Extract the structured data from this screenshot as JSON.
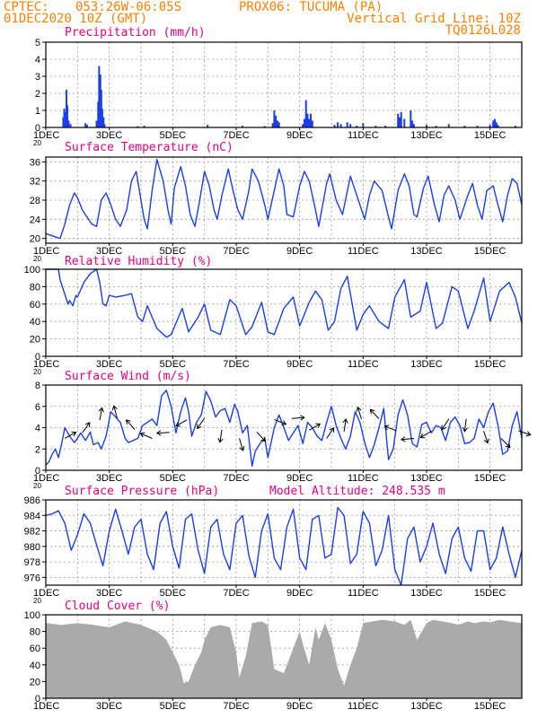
{
  "header": {
    "source": "CPTEC:",
    "coords": "053:26W-06:05S",
    "location": "PROX06: TUCUMA (PA)",
    "date": "01DEC2020 10Z (GMT)",
    "grid_note": "Vertical Grid Line: 10Z",
    "model": "TQ0126L028"
  },
  "colors": {
    "header": "#ff7f00",
    "panel_title": "#e6007e",
    "series": "#1c3ee6",
    "cloud": "#aaaaaa",
    "grid": "#9a9a9a"
  },
  "x_axis": {
    "labels": [
      "1DEC",
      "3DEC",
      "5DEC",
      "7DEC",
      "9DEC",
      "11DEC",
      "13DEC",
      "15DEC"
    ],
    "year_fragment": "20",
    "range_days": [
      0,
      15
    ]
  },
  "chart_data": [
    {
      "type": "bar",
      "title": "Precipitation (mm/h)",
      "ylim": [
        0,
        5
      ],
      "yticks": [
        0,
        1,
        2,
        3,
        4,
        5
      ],
      "unit_x": "days since 01DEC2020 10Z",
      "bars": [
        [
          0.55,
          0.6
        ],
        [
          0.58,
          1.1
        ],
        [
          0.62,
          0.9
        ],
        [
          0.65,
          2.2
        ],
        [
          0.68,
          1.3
        ],
        [
          0.72,
          0.4
        ],
        [
          0.78,
          0.2
        ],
        [
          1.25,
          0.25
        ],
        [
          1.3,
          0.15
        ],
        [
          1.6,
          0.4
        ],
        [
          1.65,
          1.5
        ],
        [
          1.68,
          3.6
        ],
        [
          1.72,
          3.1
        ],
        [
          1.75,
          2.2
        ],
        [
          1.78,
          1.1
        ],
        [
          1.82,
          0.6
        ],
        [
          1.85,
          0.2
        ],
        [
          2.9,
          0.08
        ],
        [
          3.1,
          0.1
        ],
        [
          5.1,
          0.15
        ],
        [
          6.2,
          0.1
        ],
        [
          6.9,
          0.08
        ],
        [
          7.15,
          0.25
        ],
        [
          7.2,
          1.0
        ],
        [
          7.25,
          0.7
        ],
        [
          7.3,
          0.4
        ],
        [
          7.35,
          0.3
        ],
        [
          8.1,
          0.2
        ],
        [
          8.15,
          0.5
        ],
        [
          8.2,
          1.6
        ],
        [
          8.25,
          0.8
        ],
        [
          8.3,
          0.5
        ],
        [
          8.35,
          0.8
        ],
        [
          8.4,
          0.4
        ],
        [
          9.1,
          0.15
        ],
        [
          9.2,
          0.3
        ],
        [
          9.3,
          0.2
        ],
        [
          9.5,
          0.3
        ],
        [
          9.6,
          0.2
        ],
        [
          9.8,
          0.1
        ],
        [
          10.0,
          0.25
        ],
        [
          10.4,
          0.1
        ],
        [
          10.7,
          0.1
        ],
        [
          11.1,
          0.8
        ],
        [
          11.15,
          0.6
        ],
        [
          11.2,
          0.9
        ],
        [
          11.3,
          0.5
        ],
        [
          11.5,
          1.0
        ],
        [
          11.55,
          0.4
        ],
        [
          11.6,
          0.2
        ],
        [
          12.0,
          0.15
        ],
        [
          12.3,
          0.1
        ],
        [
          12.7,
          0.2
        ],
        [
          13.2,
          0.1
        ],
        [
          13.6,
          0.1
        ],
        [
          14.0,
          0.15
        ],
        [
          14.1,
          0.4
        ],
        [
          14.15,
          0.5
        ],
        [
          14.2,
          0.3
        ],
        [
          14.25,
          0.15
        ],
        [
          14.8,
          0.1
        ]
      ]
    },
    {
      "type": "line",
      "title": "Surface Temperature (nC)",
      "ylim": [
        19,
        37
      ],
      "yticks": [
        20,
        24,
        28,
        32,
        36
      ],
      "x": [
        0,
        0.45,
        0.6,
        0.75,
        0.9,
        1.0,
        1.15,
        1.3,
        1.45,
        1.6,
        1.75,
        1.9,
        2.05,
        2.2,
        2.35,
        2.55,
        2.7,
        2.85,
        3.0,
        3.1,
        3.2,
        3.35,
        3.5,
        3.7,
        3.85,
        3.95,
        4.05,
        4.25,
        4.4,
        4.55,
        4.7,
        4.85,
        5.0,
        5.15,
        5.3,
        5.4,
        5.55,
        5.75,
        5.9,
        6.05,
        6.2,
        6.4,
        6.5,
        6.7,
        6.9,
        7.0,
        7.2,
        7.35,
        7.5,
        7.6,
        7.8,
        8.0,
        8.15,
        8.3,
        8.5,
        8.6,
        8.85,
        8.95,
        9.15,
        9.35,
        9.6,
        9.9,
        10.05,
        10.2,
        10.35,
        10.6,
        10.8,
        10.9,
        11.1,
        11.3,
        11.45,
        11.6,
        11.7,
        11.9,
        12.05,
        12.25,
        12.4,
        12.55,
        12.7,
        12.9,
        13.05,
        13.3,
        13.45,
        13.6,
        13.75,
        13.9,
        14.1,
        14.25,
        14.4,
        14.55,
        14.7,
        14.85,
        15.0
      ],
      "values": [
        21.0,
        20.0,
        23.0,
        27.0,
        29.5,
        28.5,
        26.0,
        24.5,
        23.0,
        22.5,
        28.0,
        29.5,
        27.0,
        24.0,
        22.5,
        26.0,
        32.0,
        34.0,
        28.0,
        24.0,
        22.0,
        30.0,
        36.5,
        32.0,
        26.0,
        23.0,
        30.5,
        35.0,
        31.0,
        25.0,
        22.5,
        28.0,
        34.0,
        31.0,
        26.0,
        24.0,
        29.0,
        34.5,
        30.0,
        26.0,
        24.0,
        30.0,
        34.5,
        32.0,
        27.0,
        24.0,
        30.0,
        34.5,
        31.0,
        25.0,
        24.5,
        31.0,
        34.0,
        32.0,
        26.0,
        22.5,
        31.5,
        33.5,
        28.0,
        25.0,
        33.0,
        27.0,
        24.0,
        29.0,
        32.0,
        30.0,
        24.5,
        22.0,
        30.0,
        33.5,
        31.0,
        25.0,
        24.5,
        30.5,
        33.0,
        27.0,
        23.5,
        29.0,
        31.0,
        28.0,
        24.0,
        29.0,
        31.5,
        27.0,
        24.0,
        30.0,
        31.0,
        27.0,
        23.5,
        29.0,
        32.5,
        31.5,
        27.0
      ]
    },
    {
      "type": "line",
      "title": "Relative Humidity (%)",
      "ylim": [
        0,
        100
      ],
      "yticks": [
        0,
        20,
        40,
        60,
        80,
        100
      ],
      "x": [
        0,
        0.4,
        0.45,
        0.7,
        0.75,
        0.85,
        0.95,
        1.0,
        1.2,
        1.4,
        1.6,
        1.7,
        1.8,
        1.9,
        2.0,
        2.2,
        2.5,
        2.7,
        2.9,
        3.05,
        3.2,
        3.5,
        3.8,
        3.95,
        4.1,
        4.3,
        4.5,
        4.8,
        5.0,
        5.2,
        5.5,
        5.8,
        6.0,
        6.3,
        6.5,
        6.8,
        7.0,
        7.2,
        7.5,
        7.8,
        8.0,
        8.3,
        8.5,
        8.7,
        8.9,
        9.1,
        9.3,
        9.5,
        9.8,
        10.0,
        10.2,
        10.5,
        10.8,
        11.0,
        11.3,
        11.5,
        11.8,
        12.0,
        12.3,
        12.5,
        12.8,
        13.0,
        13.3,
        13.5,
        13.8,
        14.0,
        14.3,
        14.6,
        14.8,
        15.0
      ],
      "values": [
        100,
        100,
        88,
        60,
        64,
        58,
        70,
        68,
        85,
        95,
        100,
        85,
        60,
        58,
        70,
        68,
        70,
        72,
        45,
        40,
        58,
        32,
        22,
        25,
        38,
        55,
        28,
        45,
        60,
        30,
        25,
        65,
        58,
        25,
        34,
        62,
        28,
        25,
        55,
        68,
        35,
        62,
        75,
        65,
        30,
        40,
        78,
        92,
        30,
        48,
        58,
        40,
        32,
        68,
        88,
        45,
        52,
        85,
        32,
        38,
        80,
        75,
        32,
        52,
        90,
        40,
        75,
        85,
        68,
        38
      ]
    },
    {
      "type": "line",
      "title": "Surface Wind (m/s)",
      "ylim": [
        0,
        8
      ],
      "yticks": [
        0,
        2,
        4,
        6,
        8
      ],
      "x": [
        0,
        0.1,
        0.2,
        0.3,
        0.4,
        0.5,
        0.6,
        0.75,
        0.9,
        1.0,
        1.1,
        1.25,
        1.4,
        1.5,
        1.65,
        1.75,
        1.9,
        2.05,
        2.2,
        2.35,
        2.5,
        2.6,
        2.75,
        2.9,
        3.05,
        3.2,
        3.35,
        3.5,
        3.65,
        3.8,
        3.95,
        4.1,
        4.25,
        4.4,
        4.5,
        4.6,
        4.75,
        4.9,
        5.05,
        5.2,
        5.35,
        5.5,
        5.65,
        5.8,
        5.95,
        6.05,
        6.2,
        6.35,
        6.5,
        6.6,
        6.75,
        6.9,
        7.0,
        7.2,
        7.35,
        7.5,
        7.65,
        7.8,
        7.95,
        8.1,
        8.25,
        8.4,
        8.55,
        8.7,
        8.85,
        9.0,
        9.15,
        9.3,
        9.45,
        9.6,
        9.75,
        9.9,
        10.05,
        10.2,
        10.35,
        10.5,
        10.65,
        10.8,
        10.95,
        11.1,
        11.25,
        11.4,
        11.55,
        11.7,
        11.85,
        12.0,
        12.15,
        12.3,
        12.45,
        12.6,
        12.75,
        12.9,
        13.05,
        13.2,
        13.35,
        13.5,
        13.65,
        13.8,
        13.95,
        14.1,
        14.25,
        14.4,
        14.55,
        14.7,
        14.85,
        15.0
      ],
      "values": [
        0.5,
        0.8,
        1.5,
        2.0,
        1.2,
        2.5,
        4.0,
        3.2,
        2.6,
        3.0,
        3.5,
        2.8,
        3.6,
        2.4,
        2.6,
        2.0,
        3.2,
        5.5,
        5.0,
        4.5,
        3.0,
        2.6,
        2.8,
        3.0,
        4.2,
        4.5,
        4.8,
        4.2,
        7.0,
        7.5,
        6.0,
        3.5,
        5.5,
        6.8,
        5.5,
        3.2,
        4.5,
        5.2,
        7.4,
        6.5,
        5.0,
        5.6,
        5.8,
        4.5,
        6.2,
        5.5,
        3.5,
        4.2,
        0.4,
        1.8,
        2.5,
        3.0,
        1.2,
        4.0,
        5.2,
        4.0,
        2.8,
        3.5,
        4.2,
        2.5,
        4.5,
        4.0,
        3.2,
        2.8,
        4.5,
        6.0,
        4.2,
        3.0,
        2.0,
        3.2,
        5.5,
        4.5,
        2.6,
        1.2,
        2.4,
        4.0,
        5.8,
        1.0,
        2.0,
        5.2,
        6.6,
        5.2,
        2.5,
        2.2,
        4.3,
        4.5,
        3.5,
        4.2,
        4.0,
        2.8,
        4.5,
        5.0,
        4.2,
        2.5,
        2.6,
        3.0,
        4.8,
        4.0,
        5.5,
        6.3,
        4.2,
        1.5,
        1.8,
        4.2,
        5.5,
        3.0
      ]
    },
    {
      "type": "line",
      "title": "Surface Pressure (hPa)",
      "annotation": "Model Altitude: 248.535 m",
      "ylim": [
        975.0,
        986.0
      ],
      "yticks": [
        976,
        978,
        980,
        982,
        984,
        986
      ],
      "x": [
        0,
        0.2,
        0.4,
        0.6,
        0.8,
        1.0,
        1.2,
        1.4,
        1.6,
        1.8,
        2.0,
        2.2,
        2.4,
        2.6,
        2.8,
        3.0,
        3.2,
        3.4,
        3.6,
        3.8,
        4.0,
        4.2,
        4.4,
        4.6,
        4.8,
        5.0,
        5.2,
        5.4,
        5.6,
        5.8,
        6.0,
        6.2,
        6.4,
        6.6,
        6.8,
        7.0,
        7.2,
        7.4,
        7.6,
        7.8,
        8.0,
        8.2,
        8.4,
        8.6,
        8.8,
        9.0,
        9.2,
        9.4,
        9.6,
        9.8,
        10.0,
        10.2,
        10.4,
        10.6,
        10.8,
        11.0,
        11.2,
        11.4,
        11.6,
        11.8,
        12.0,
        12.2,
        12.4,
        12.6,
        12.8,
        13.0,
        13.2,
        13.4,
        13.6,
        13.8,
        14.0,
        14.2,
        14.4,
        14.6,
        14.8,
        15.0
      ],
      "values": [
        984.0,
        984.2,
        984.6,
        983.0,
        979.5,
        981.5,
        984.2,
        983.0,
        980.2,
        977.5,
        982.0,
        984.8,
        982.0,
        979.0,
        982.5,
        983.5,
        979.0,
        977.0,
        983.0,
        984.5,
        980.0,
        977.2,
        983.5,
        984.2,
        979.5,
        976.5,
        982.5,
        983.5,
        979.0,
        977.0,
        983.0,
        984.0,
        978.8,
        976.0,
        982.0,
        984.2,
        978.5,
        977.0,
        982.5,
        984.8,
        978.5,
        977.0,
        983.5,
        984.0,
        978.5,
        979.0,
        985.0,
        984.0,
        977.8,
        979.0,
        984.5,
        983.0,
        977.5,
        979.5,
        984.0,
        977.0,
        975.0,
        981.0,
        982.5,
        978.0,
        980.0,
        983.0,
        979.0,
        976.5,
        981.0,
        982.5,
        978.5,
        976.8,
        982.0,
        982.0,
        977.0,
        978.5,
        982.5,
        979.0,
        976.0,
        979.5
      ]
    },
    {
      "type": "area",
      "title": "Cloud Cover (%)",
      "ylim": [
        0,
        100
      ],
      "yticks": [
        0,
        20,
        40,
        60,
        80,
        100
      ],
      "x": [
        0,
        0.5,
        1.0,
        1.5,
        2.0,
        2.5,
        3.0,
        3.5,
        3.8,
        4.0,
        4.2,
        4.35,
        4.5,
        4.7,
        4.9,
        5.0,
        5.2,
        5.5,
        5.8,
        6.0,
        6.1,
        6.3,
        6.5,
        6.8,
        7.0,
        7.2,
        7.5,
        7.8,
        8.0,
        8.1,
        8.3,
        8.5,
        8.6,
        8.8,
        9.0,
        9.2,
        9.4,
        9.6,
        9.8,
        10.0,
        10.3,
        10.6,
        11.0,
        11.3,
        11.5,
        11.7,
        12.0,
        12.2,
        12.5,
        12.8,
        13.0,
        13.3,
        13.5,
        13.8,
        14.0,
        14.3,
        14.6,
        15.0
      ],
      "values": [
        90,
        88,
        90,
        88,
        85,
        92,
        88,
        80,
        70,
        55,
        40,
        18,
        20,
        40,
        55,
        70,
        85,
        88,
        85,
        55,
        25,
        50,
        90,
        92,
        88,
        35,
        30,
        60,
        80,
        65,
        40,
        85,
        70,
        90,
        70,
        35,
        15,
        40,
        60,
        90,
        92,
        94,
        92,
        88,
        94,
        70,
        90,
        94,
        92,
        90,
        88,
        92,
        90,
        92,
        91,
        94,
        92,
        90
      ]
    }
  ]
}
